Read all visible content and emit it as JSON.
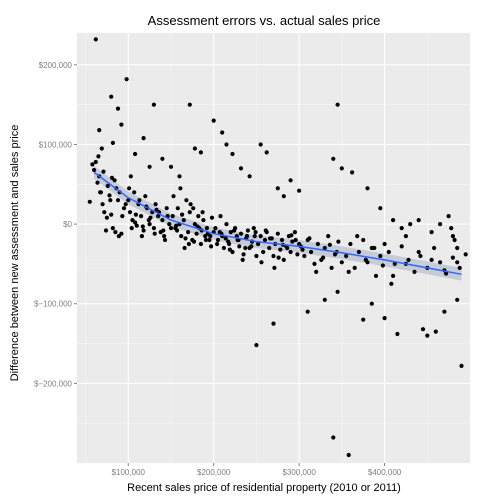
{
  "chart_data": {
    "type": "scatter",
    "title": "Assessment errors vs. actual sales price",
    "xlabel": "Recent sales price of residential property (2010 or 2011)",
    "ylabel": "Difference between new assessment and sales price",
    "xlim": [
      40000,
      500000
    ],
    "ylim": [
      -300000,
      240000
    ],
    "x_ticks": [
      {
        "value": 100000,
        "label": "$100,000"
      },
      {
        "value": 200000,
        "label": "$200,000"
      },
      {
        "value": 300000,
        "label": "$300,000"
      },
      {
        "value": 400000,
        "label": "$400,000"
      }
    ],
    "y_ticks": [
      {
        "value": 200000,
        "label": "$200,000"
      },
      {
        "value": 100000,
        "label": "$100,000"
      },
      {
        "value": 0,
        "label": "$0"
      },
      {
        "value": -100000,
        "label": "$−100,000"
      },
      {
        "value": -200000,
        "label": "$−200,000"
      }
    ],
    "grid": true,
    "colors": {
      "panel": "#ebebeb",
      "grid": "#ffffff",
      "points": "#000000",
      "trend": "#3366ff",
      "band": "#9aa4c0"
    },
    "trend": {
      "x": [
        60000,
        100000,
        150000,
        200000,
        250000,
        300000,
        350000,
        400000,
        450000,
        490000
      ],
      "y": [
        65000,
        33000,
        5000,
        -12000,
        -22000,
        -28000,
        -36000,
        -45000,
        -55000,
        -63000
      ]
    },
    "series": [
      {
        "x": [
          55000,
          60000,
          62000,
          65000,
          66000,
          68000,
          70000,
          72000,
          75000,
          76000,
          78000,
          80000,
          82000,
          84000,
          85000,
          88000,
          90000,
          92000,
          95000,
          58000,
          64000,
          71000,
          79000,
          86000,
          93000,
          67000,
          74000,
          81000,
          89000,
          97000,
          100000,
          102000,
          105000,
          107000,
          110000,
          112000,
          115000,
          118000,
          120000,
          122000,
          125000,
          128000,
          130000,
          132000,
          135000,
          138000,
          140000,
          142000,
          145000,
          148000,
          150000,
          101000,
          104000,
          109000,
          113000,
          117000,
          121000,
          126000,
          131000,
          136000,
          141000,
          146000,
          103000,
          108000,
          116000,
          124000,
          133000,
          143000,
          152000,
          155000,
          158000,
          160000,
          162000,
          165000,
          168000,
          170000,
          172000,
          175000,
          178000,
          180000,
          182000,
          185000,
          188000,
          190000,
          192000,
          195000,
          198000,
          200000,
          153000,
          157000,
          163000,
          167000,
          173000,
          177000,
          183000,
          187000,
          193000,
          197000,
          156000,
          166000,
          176000,
          186000,
          196000,
          161000,
          171000,
          181000,
          191000,
          202000,
          205000,
          208000,
          210000,
          212000,
          215000,
          218000,
          220000,
          222000,
          225000,
          228000,
          230000,
          232000,
          235000,
          238000,
          240000,
          242000,
          245000,
          248000,
          250000,
          204000,
          209000,
          214000,
          219000,
          224000,
          229000,
          234000,
          239000,
          244000,
          249000,
          207000,
          217000,
          227000,
          237000,
          247000,
          252000,
          255000,
          258000,
          260000,
          262000,
          265000,
          268000,
          270000,
          272000,
          275000,
          278000,
          280000,
          282000,
          285000,
          288000,
          290000,
          292000,
          295000,
          298000,
          300000,
          256000,
          266000,
          276000,
          286000,
          296000,
          261000,
          271000,
          281000,
          291000,
          302000,
          306000,
          310000,
          314000,
          318000,
          322000,
          326000,
          330000,
          334000,
          338000,
          342000,
          346000,
          350000,
          304000,
          312000,
          320000,
          328000,
          336000,
          344000,
          355000,
          360000,
          365000,
          370000,
          375000,
          380000,
          385000,
          390000,
          395000,
          400000,
          358000,
          368000,
          378000,
          388000,
          398000,
          405000,
          412000,
          420000,
          428000,
          435000,
          442000,
          450000,
          458000,
          465000,
          472000,
          480000,
          488000,
          495000,
          410000,
          425000,
          440000,
          455000,
          470000,
          485000,
          62000,
          66000,
          69000,
          80000,
          82000,
          88000,
          92000,
          98000,
          108000,
          118000,
          125000,
          130000,
          140000,
          150000,
          160000,
          172000,
          178000,
          185000,
          200000,
          210000,
          215000,
          222000,
          232000,
          242000,
          255000,
          262000,
          275000,
          282000,
          290000,
          300000,
          340000,
          345000,
          350000,
          362000,
          380000,
          395000,
          410000,
          420000,
          425000,
          430000,
          440000,
          455000,
          465000,
          475000,
          478000,
          480000,
          482000,
          485000,
          250000,
          270000,
          310000,
          330000,
          340000,
          345000,
          358000,
          375000,
          385000,
          400000,
          408000,
          415000,
          445000,
          450000,
          460000,
          470000,
          485000,
          490000
        ],
        "y": [
          28000,
          68000,
          78000,
          85000,
          60000,
          40000,
          25000,
          15000,
          8000,
          48000,
          36000,
          12000,
          -5000,
          55000,
          -10000,
          30000,
          40000,
          -12000,
          20000,
          75000,
          52000,
          66000,
          30000,
          45000,
          10000,
          40000,
          -8000,
          58000,
          -15000,
          25000,
          30000,
          15000,
          5000,
          40000,
          -2000,
          25000,
          10000,
          -8000,
          35000,
          20000,
          0,
          15000,
          -5000,
          25000,
          10000,
          -10000,
          5000,
          -15000,
          20000,
          0,
          -5000,
          45000,
          -5000,
          12000,
          30000,
          -3000,
          22000,
          8000,
          -12000,
          15000,
          -8000,
          10000,
          60000,
          2000,
          -15000,
          5000,
          18000,
          -20000,
          10000,
          -5000,
          20000,
          0,
          -15000,
          5000,
          30000,
          -10000,
          15000,
          -20000,
          0,
          -12000,
          10000,
          -25000,
          5000,
          -15000,
          -5000,
          -20000,
          8000,
          -10000,
          35000,
          -8000,
          12000,
          -18000,
          25000,
          -22000,
          -5000,
          15000,
          -12000,
          -28000,
          -2000,
          -30000,
          20000,
          -8000,
          -15000,
          45000,
          -25000,
          -3000,
          -20000,
          -5000,
          -20000,
          10000,
          -15000,
          -30000,
          0,
          -25000,
          -10000,
          -35000,
          -5000,
          -20000,
          -28000,
          -12000,
          -38000,
          -18000,
          -8000,
          -30000,
          -22000,
          -15000,
          -40000,
          -25000,
          -12000,
          -18000,
          -32000,
          -8000,
          -20000,
          -45000,
          -15000,
          -28000,
          -10000,
          -10000,
          -22000,
          -15000,
          -30000,
          -5000,
          -25000,
          -15000,
          -35000,
          -20000,
          -10000,
          -30000,
          -18000,
          -40000,
          -25000,
          -12000,
          -32000,
          -20000,
          -45000,
          -28000,
          -15000,
          -35000,
          -22000,
          -10000,
          -38000,
          -25000,
          -48000,
          -18000,
          -42000,
          -30000,
          -20000,
          -8000,
          -55000,
          -26000,
          -14000,
          -28000,
          -40000,
          -20000,
          -35000,
          -50000,
          -25000,
          -45000,
          -30000,
          -15000,
          -55000,
          -38000,
          -22000,
          -48000,
          -32000,
          -18000,
          -60000,
          -42000,
          -26000,
          -35000,
          -40000,
          -25000,
          -55000,
          -35000,
          -20000,
          -48000,
          -30000,
          -65000,
          -40000,
          -25000,
          -60000,
          -15000,
          -45000,
          -30000,
          -52000,
          -35000,
          -50000,
          -28000,
          -45000,
          -60000,
          -40000,
          -55000,
          -30000,
          -48000,
          -62000,
          -42000,
          -55000,
          -38000,
          -65000,
          -50000,
          -35000,
          -45000,
          -58000,
          -48000,
          232000,
          118000,
          95000,
          160000,
          102000,
          145000,
          125000,
          182000,
          88000,
          108000,
          72000,
          150000,
          82000,
          72000,
          60000,
          150000,
          95000,
          90000,
          130000,
          115000,
          100000,
          88000,
          70000,
          60000,
          100000,
          90000,
          45000,
          35000,
          55000,
          42000,
          82000,
          150000,
          70000,
          65000,
          45000,
          20000,
          5000,
          -5000,
          -15000,
          0,
          5000,
          -10000,
          0,
          10000,
          -5000,
          -15000,
          -20000,
          -30000,
          -152000,
          -125000,
          -110000,
          -95000,
          -268000,
          -85000,
          -290000,
          -120000,
          -100000,
          -118000,
          -75000,
          -138000,
          -132000,
          -140000,
          -135000,
          -110000,
          -95000,
          -178000
        ]
      }
    ]
  }
}
